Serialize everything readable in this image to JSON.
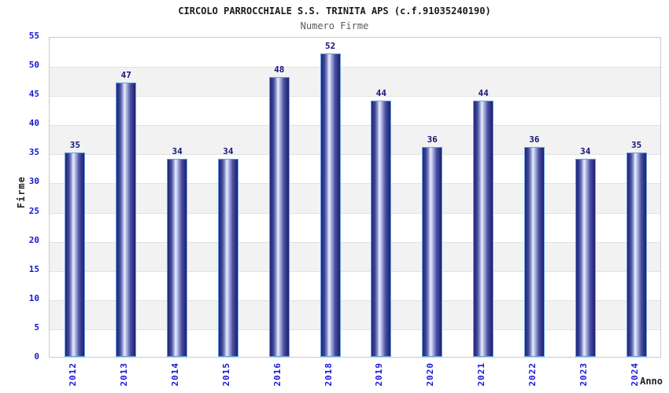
{
  "chart_data": {
    "type": "bar",
    "title": "CIRCOLO PARROCCHIALE S.S. TRINITA APS (c.f.91035240190)",
    "subtitle": "Numero Firme",
    "xlabel": "Anno",
    "ylabel": "Firme",
    "categories": [
      "2012",
      "2013",
      "2014",
      "2015",
      "2016",
      "2018",
      "2019",
      "2020",
      "2021",
      "2022",
      "2023",
      "2024"
    ],
    "values": [
      35,
      47,
      34,
      34,
      48,
      52,
      44,
      36,
      44,
      36,
      34,
      35
    ],
    "ylim": [
      0,
      55
    ],
    "yticks": [
      0,
      5,
      10,
      15,
      20,
      25,
      30,
      35,
      40,
      45,
      50,
      55
    ],
    "grid": "alternating horizontal bands every 5 units, gray on 45-50, 35-40, 25-30, 15-20, 5-10",
    "legend": "none",
    "colors": {
      "tick_label_blue": "#1717d8",
      "value_label_navy": "#14147a",
      "title_color": "#1a1a1a",
      "subtitle_gray": "#5a5a5a",
      "band_gray": "#f2f2f2",
      "gridline": "#e2e2e2",
      "plot_border": "#c9c9c9",
      "bar_border_lightblue": "#66a3e0",
      "bar_dark_edge": "#23237c",
      "bar_highlight": "#edf0fb"
    }
  }
}
